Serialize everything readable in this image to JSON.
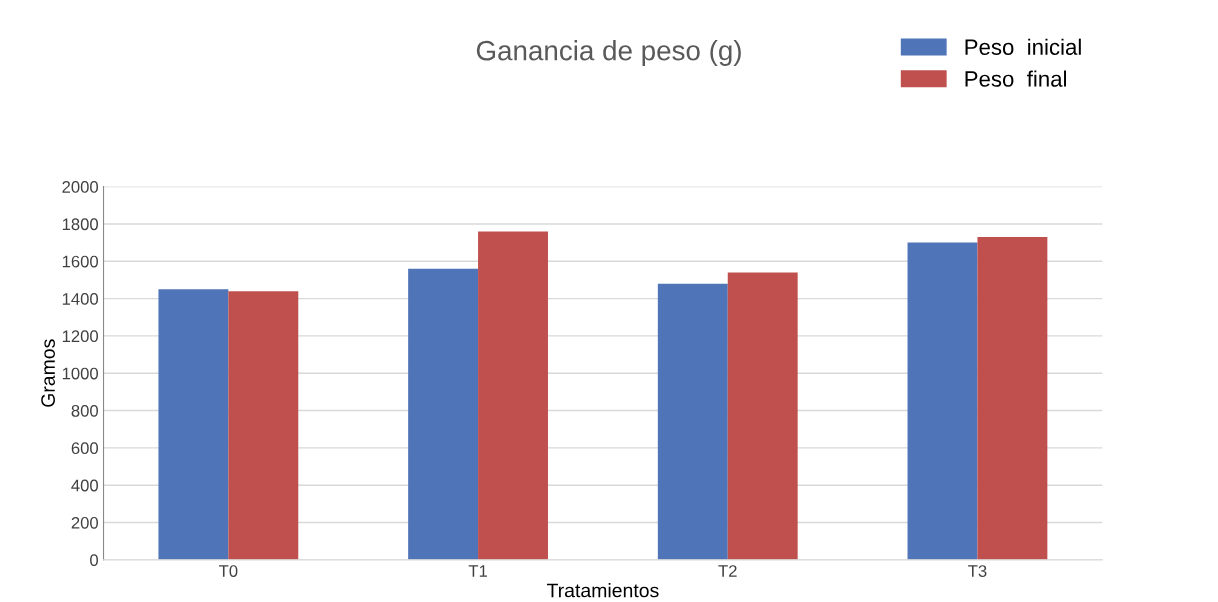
{
  "chart_data": {
    "type": "bar",
    "title": "Ganancia de peso (g)",
    "xlabel": "Tratamientos",
    "ylabel": "Gramos",
    "categories": [
      "T0",
      "T1",
      "T2",
      "T3"
    ],
    "series": [
      {
        "name": "Peso  inicial",
        "color": "#4f74b8",
        "values": [
          1450,
          1560,
          1480,
          1700
        ]
      },
      {
        "name": "Peso  final",
        "color": "#c0504d",
        "values": [
          1440,
          1760,
          1540,
          1730
        ]
      }
    ],
    "ylim": [
      0,
      2000
    ],
    "yticks": [
      0,
      200,
      400,
      600,
      800,
      1000,
      1200,
      1400,
      1600,
      1800,
      2000
    ],
    "grid": "y",
    "legend": "top right"
  }
}
